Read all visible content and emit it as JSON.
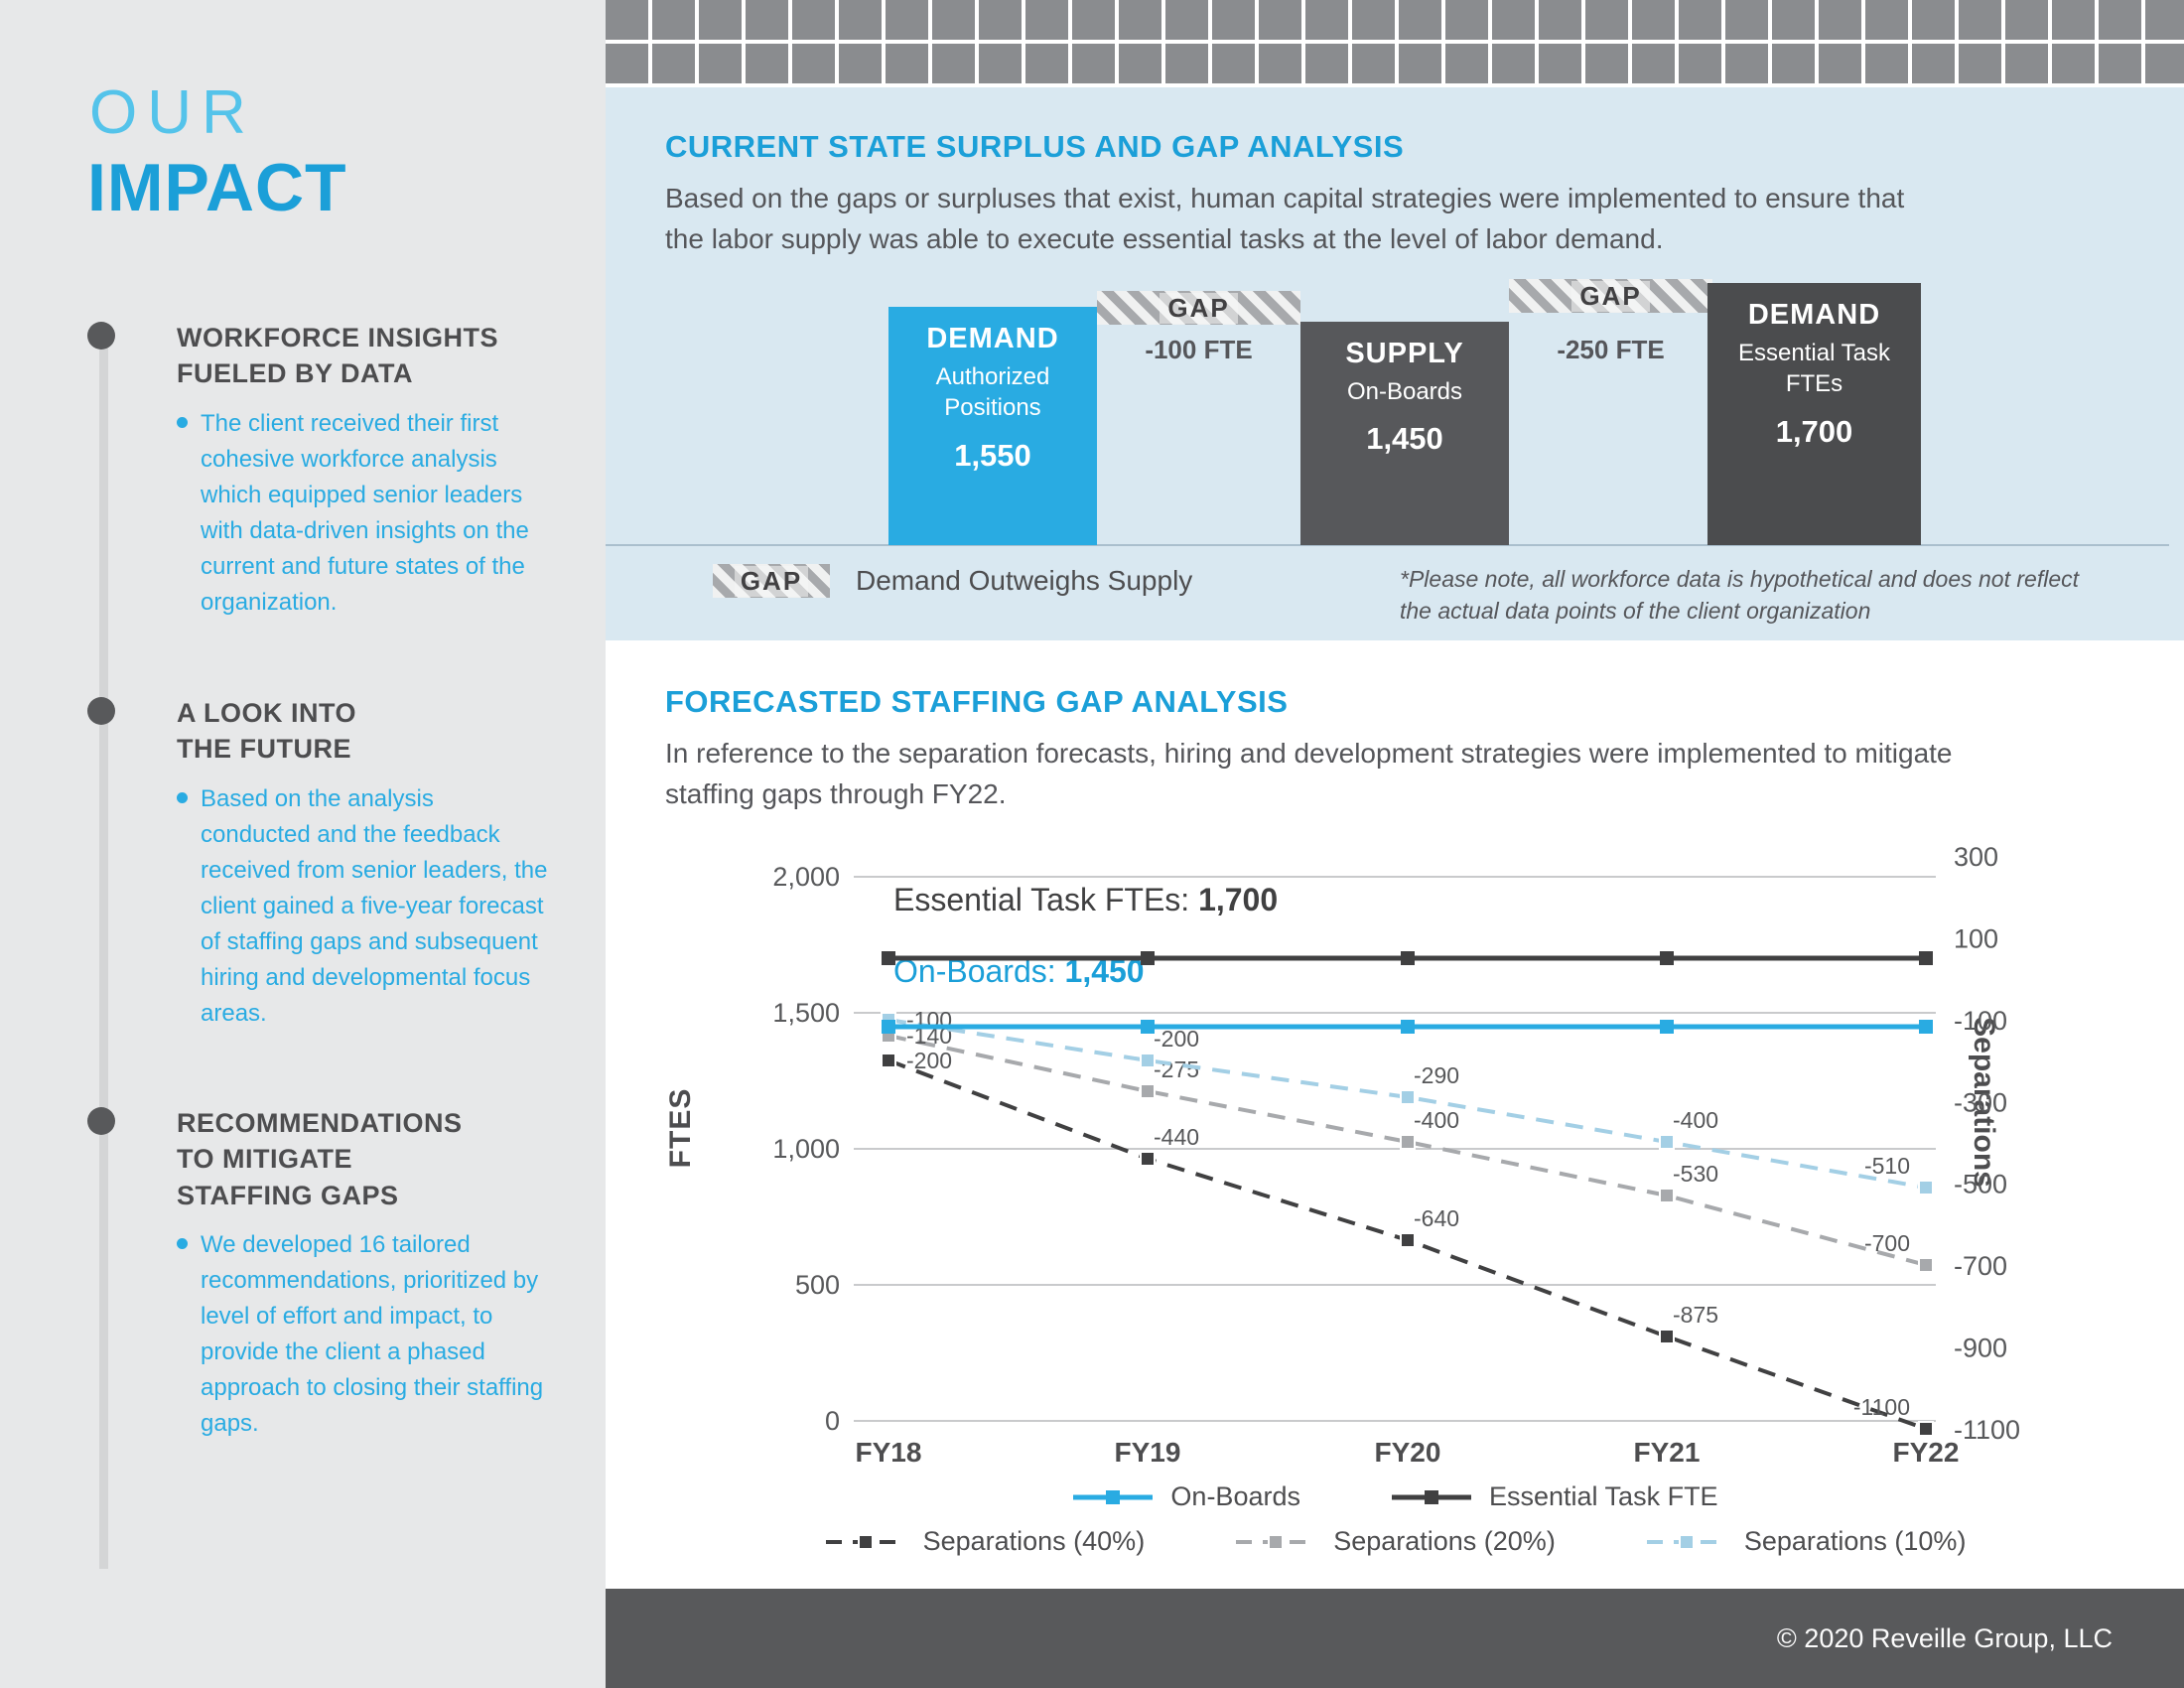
{
  "page": {
    "title_line1": "OUR",
    "title_line2": "IMPACT",
    "footer": "© 2020 Reveille Group, LLC"
  },
  "sidebar": {
    "sections": [
      {
        "heading": "WORKFORCE INSIGHTS\nFUELED BY DATA",
        "body": "The client received their first cohesive workforce analysis which equipped senior leaders with data-driven insights on the current and future states of the organization."
      },
      {
        "heading": "A LOOK INTO\nTHE FUTURE",
        "body": "Based on the analysis conducted and the feedback received from senior leaders, the client gained a five-year forecast of staffing gaps and subsequent hiring and developmental focus areas."
      },
      {
        "heading": "RECOMMENDATIONS\nTO MITIGATE\nSTAFFING GAPS",
        "body": "We developed 16 tailored recommendations, prioritized by level of effort and impact, to provide the client a phased approach to closing their staffing gaps."
      }
    ]
  },
  "current_state": {
    "heading": "CURRENT STATE SURPLUS AND GAP ANALYSIS",
    "description": "Based on the gaps or surpluses that exist, human capital strategies were implemented to ensure that the labor supply was able to execute essential tasks at the level of labor demand.",
    "bars": [
      {
        "label": "DEMAND",
        "sublabel": "Authorized Positions",
        "value": "1,550",
        "value_num": 1550,
        "color": "#29abe2"
      },
      {
        "label": "SUPPLY",
        "sublabel": "On-Boards",
        "value": "1,450",
        "value_num": 1450,
        "color": "#57585b"
      },
      {
        "label": "DEMAND",
        "sublabel": "Essential Task FTEs",
        "value": "1,700",
        "value_num": 1700,
        "color": "#4b4c4e"
      }
    ],
    "gaps": [
      {
        "label": "GAP",
        "delta": "-100 FTE"
      },
      {
        "label": "GAP",
        "delta": "-250 FTE"
      }
    ],
    "legend": {
      "gap_label": "GAP",
      "text": "Demand Outweighs Supply"
    },
    "note": "*Please note, all workforce data is hypothetical and does not reflect the actual data points of the client organization"
  },
  "forecast": {
    "heading": "FORECASTED STAFFING GAP ANALYSIS",
    "description": "In reference to the separation forecasts, hiring and development strategies were implemented to mitigate staffing gaps through FY22.",
    "legend_rows": [
      [
        0,
        1
      ],
      [
        2,
        3,
        4
      ]
    ]
  },
  "chart_data": {
    "type": "line",
    "categories": [
      "FY18",
      "FY19",
      "FY20",
      "FY21",
      "FY22"
    ],
    "series": [
      {
        "name": "On-Boards",
        "axis": "left",
        "style": "solid",
        "color": "#29abe2",
        "values": [
          1450,
          1450,
          1450,
          1450,
          1450
        ]
      },
      {
        "name": "Essential Task FTE",
        "axis": "left",
        "style": "solid",
        "color": "#404041",
        "values": [
          1700,
          1700,
          1700,
          1700,
          1700
        ]
      },
      {
        "name": "Separations (40%)",
        "axis": "right",
        "style": "dashed",
        "color": "#404041",
        "values": [
          -200,
          -440,
          -640,
          -875,
          -1100
        ]
      },
      {
        "name": "Separations (20%)",
        "axis": "right",
        "style": "dashed",
        "color": "#a7a9ac",
        "values": [
          -140,
          -275,
          -400,
          -530,
          -700
        ]
      },
      {
        "name": "Separations (10%)",
        "axis": "right",
        "style": "dashed",
        "color": "#a3cfe5",
        "values": [
          -100,
          -200,
          -290,
          -400,
          -510
        ]
      }
    ],
    "left_axis": {
      "label": "FTES",
      "ticks": [
        2000,
        1500,
        1000,
        500,
        0
      ],
      "tick_labels": [
        "2,000",
        "1,500",
        "1,000",
        "500",
        "0"
      ],
      "range": [
        0,
        2000
      ]
    },
    "right_axis": {
      "label": "Separations",
      "ticks": [
        300,
        100,
        -100,
        -300,
        -500,
        -700,
        -900,
        -1100
      ],
      "range": [
        -1100,
        300
      ]
    },
    "annotations": [
      {
        "label": "Essential Task FTEs: ",
        "value": "1,700"
      },
      {
        "label": "On-Boards: ",
        "value": "1,450"
      }
    ],
    "grid": "horizontal",
    "legend_position": "bottom"
  }
}
